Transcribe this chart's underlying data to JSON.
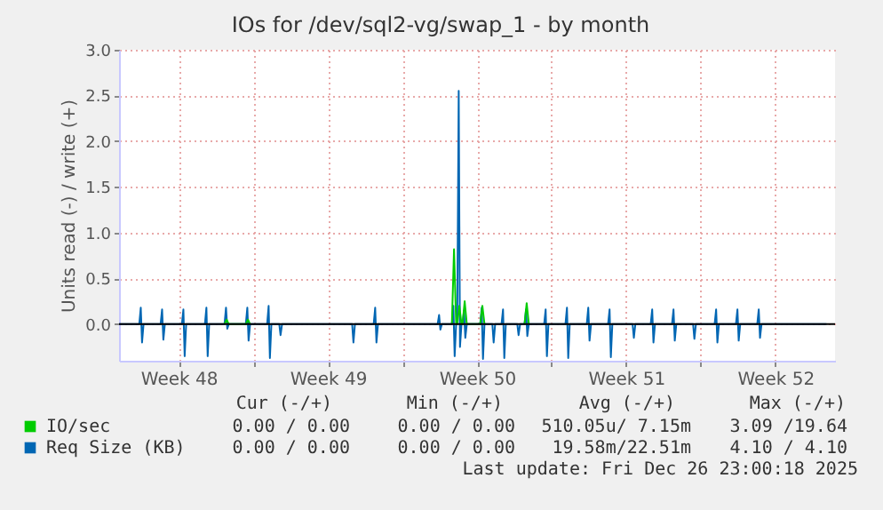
{
  "chart_data": {
    "type": "line",
    "title": "IOs for /dev/sql2-vg/swap_1 - by month",
    "ylabel": "Units read (-) / write (+)",
    "xlim": [
      "2025-11-24T16:48",
      "2025-12-28T07:12"
    ],
    "xticks": [
      {
        "value": "2025-11-27T12:00",
        "label": "Week 48"
      },
      {
        "value": "2025-12-01",
        "label": null
      },
      {
        "value": "2025-12-04T12:00",
        "label": "Week 49"
      },
      {
        "value": "2025-12-08",
        "label": null
      },
      {
        "value": "2025-12-11T12:00",
        "label": "Week 50"
      },
      {
        "value": "2025-12-15",
        "label": null
      },
      {
        "value": "2025-12-18T12:00",
        "label": "Week 51"
      },
      {
        "value": "2025-12-22",
        "label": null
      },
      {
        "value": "2025-12-25T12:00",
        "label": "Week 52"
      }
    ],
    "ylim": [
      -0.4,
      3.0
    ],
    "yticks": [
      {
        "value": 0,
        "label": "0.0"
      },
      {
        "value": 0.5,
        "label": "0.5"
      },
      {
        "value": 1,
        "label": "1.0"
      },
      {
        "value": 1.5,
        "label": "1.5"
      },
      {
        "value": 2,
        "label": "2.0"
      },
      {
        "value": 2.5,
        "label": "2.5"
      },
      {
        "value": 3,
        "label": "3.0"
      }
    ],
    "grid": true,
    "legend": "bottom",
    "ref_lines": [
      {
        "axis": "y",
        "value": 0,
        "color": "#000000"
      }
    ],
    "series": [
      {
        "name": "IO/sec",
        "color": "#00cc00",
        "x": [
          "2025-11-29T15:36",
          "2025-11-29T18:00",
          "2025-11-29T20:24",
          "2025-11-30T15:36",
          "2025-11-30T18:00",
          "2025-11-30T20:24",
          "2025-12-05T00:00",
          "2025-12-10T07:41",
          "2025-12-10T10:05",
          "2025-12-10T12:29",
          "2025-12-10T13:41",
          "2025-12-10T16:05",
          "2025-12-10T18:29",
          "2025-12-10T19:41",
          "2025-12-10T22:05",
          "2025-12-11T00:29",
          "2025-12-11T15:36",
          "2025-12-11T18:00",
          "2025-12-11T20:24",
          "2025-12-12T12:00",
          "2025-12-13T17:31",
          "2025-12-13T19:55",
          "2025-12-13T22:19"
        ],
        "values": [
          0,
          0.05,
          0,
          0,
          0.05,
          0,
          null,
          0,
          0.82,
          0,
          0,
          0.2,
          0,
          0,
          0.25,
          0,
          0,
          0.2,
          0,
          null,
          0,
          0.23,
          0
        ]
      },
      {
        "name": "Req Size (KB)",
        "color": "#0066b3",
        "x": [
          "2025-11-24T16:48",
          "2025-11-25T15:36",
          "2025-11-25T17:17",
          "2025-11-25T18:43",
          "2025-11-25T20:24",
          "2025-11-26T15:36",
          "2025-11-26T17:17",
          "2025-11-26T18:43",
          "2025-11-26T20:24",
          "2025-11-27T15:36",
          "2025-11-27T17:17",
          "2025-11-27T18:43",
          "2025-11-27T20:24",
          "2025-11-28T17:31",
          "2025-11-28T19:12",
          "2025-11-28T20:38",
          "2025-11-28T22:19",
          "2025-11-29T15:36",
          "2025-11-29T17:17",
          "2025-11-29T18:43",
          "2025-11-29T20:24",
          "2025-11-30T15:36",
          "2025-11-30T17:17",
          "2025-11-30T18:43",
          "2025-11-30T20:24",
          "2025-12-01T15:36",
          "2025-12-01T17:17",
          "2025-12-01T18:43",
          "2025-12-01T20:24",
          "2025-12-02T03:36",
          "2025-12-02T05:17",
          "2025-12-02T06:43",
          "2025-12-02T08:24",
          "2025-12-05T13:41",
          "2025-12-05T15:22",
          "2025-12-05T16:48",
          "2025-12-05T18:29",
          "2025-12-06T15:36",
          "2025-12-06T17:17",
          "2025-12-06T18:43",
          "2025-12-06T20:24",
          "2025-12-09T15:36",
          "2025-12-09T17:17",
          "2025-12-09T18:43",
          "2025-12-09T20:24",
          "2025-12-10T07:41",
          "2025-12-10T09:22",
          "2025-12-10T10:48",
          "2025-12-10T12:29",
          "2025-12-10T13:41",
          "2025-12-10T15:22",
          "2025-12-10T16:48",
          "2025-12-10T18:29",
          "2025-12-10T19:41",
          "2025-12-10T21:22",
          "2025-12-10T22:48",
          "2025-12-11T00:29",
          "2025-12-11T15:36",
          "2025-12-11T17:17",
          "2025-12-11T18:43",
          "2025-12-11T20:24",
          "2025-12-12T03:36",
          "2025-12-12T05:17",
          "2025-12-12T06:43",
          "2025-12-12T08:24",
          "2025-12-12T15:36",
          "2025-12-12T17:17",
          "2025-12-12T18:43",
          "2025-12-12T20:24",
          "2025-12-13T07:41",
          "2025-12-13T09:22",
          "2025-12-13T10:48",
          "2025-12-13T12:29",
          "2025-12-13T17:31",
          "2025-12-13T19:12",
          "2025-12-13T20:38",
          "2025-12-13T22:19",
          "2025-12-14T15:36",
          "2025-12-14T17:17",
          "2025-12-14T18:43",
          "2025-12-14T20:24",
          "2025-12-15T15:36",
          "2025-12-15T17:17",
          "2025-12-15T18:43",
          "2025-12-15T20:24",
          "2025-12-16T15:36",
          "2025-12-16T17:17",
          "2025-12-16T18:43",
          "2025-12-16T20:24",
          "2025-12-17T15:36",
          "2025-12-17T17:17",
          "2025-12-17T18:43",
          "2025-12-17T20:24",
          "2025-12-18T17:31",
          "2025-12-18T19:12",
          "2025-12-18T20:38",
          "2025-12-18T22:19",
          "2025-12-19T15:36",
          "2025-12-19T17:17",
          "2025-12-19T18:43",
          "2025-12-19T20:24",
          "2025-12-20T15:36",
          "2025-12-20T17:17",
          "2025-12-20T18:43",
          "2025-12-20T20:24",
          "2025-12-21T13:41",
          "2025-12-21T15:22",
          "2025-12-21T16:48",
          "2025-12-21T18:29",
          "2025-12-22T15:36",
          "2025-12-22T17:17",
          "2025-12-22T18:43",
          "2025-12-22T20:24",
          "2025-12-23T15:36",
          "2025-12-23T17:17",
          "2025-12-23T18:43",
          "2025-12-23T20:24",
          "2025-12-24T15:36",
          "2025-12-24T17:17",
          "2025-12-24T18:43",
          "2025-12-24T20:24",
          "2025-12-27T21:36"
        ],
        "values": [
          0,
          0,
          0.18,
          -0.2,
          0,
          0,
          0.16,
          -0.17,
          0,
          0,
          0.16,
          -0.35,
          0,
          0,
          0.18,
          -0.35,
          0,
          0,
          0.18,
          -0.05,
          0,
          0,
          0.18,
          -0.18,
          0,
          0,
          0.2,
          -0.37,
          0,
          0,
          0,
          -0.12,
          0,
          0,
          0,
          -0.2,
          0,
          0,
          0.18,
          -0.2,
          0,
          0,
          0.1,
          -0.06,
          0,
          0,
          0.2,
          -0.35,
          0,
          0,
          2.55,
          -0.25,
          0,
          0,
          0.15,
          -0.15,
          0,
          0,
          0.18,
          -0.38,
          0,
          0,
          0,
          -0.2,
          0,
          0,
          0.16,
          -0.37,
          0,
          0,
          0,
          -0.12,
          0,
          0,
          0.16,
          -0.13,
          0,
          0,
          0.16,
          -0.35,
          0,
          0,
          0.18,
          -0.37,
          0,
          0,
          0.18,
          -0.18,
          0,
          0,
          0.16,
          -0.36,
          0,
          0,
          0,
          -0.15,
          0,
          0,
          0.16,
          -0.2,
          0,
          0,
          0.16,
          -0.18,
          0,
          0,
          0,
          -0.16,
          0,
          0,
          0.16,
          -0.2,
          0,
          0,
          0.16,
          -0.18,
          0,
          0,
          0.16,
          -0.15,
          0,
          0
        ]
      }
    ],
    "annotations": [
      "Cur (-/+)",
      "Min (-/+)",
      "Avg (-/+)",
      "Max (-/+)",
      "0.00 / 0.00",
      "0.00 / 0.00",
      "510.05u/ 7.15m",
      "3.09 /19.64",
      "0.00 / 0.00",
      "0.00 / 0.00",
      "19.58m/22.51m",
      "4.10 / 4.10",
      "Last update: Fri Dec 26 23:00:18 2025"
    ]
  }
}
